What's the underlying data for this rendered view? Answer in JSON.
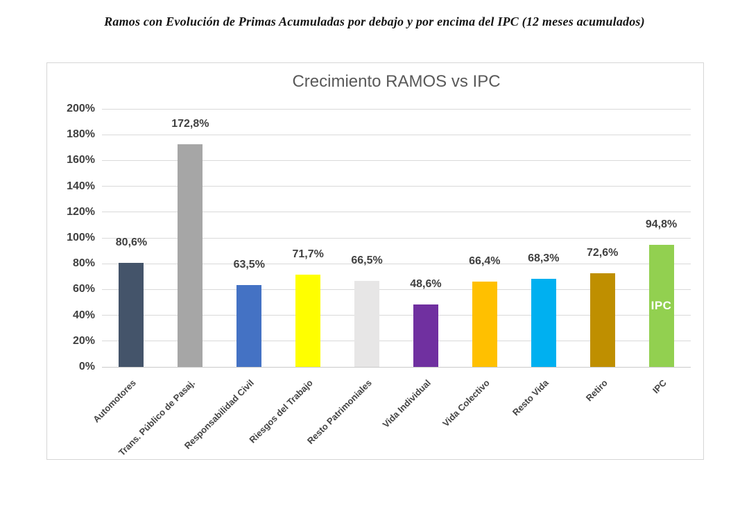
{
  "heading": "Ramos con Evolución de Primas Acumuladas por debajo y por encima del IPC (12 meses acumulados)",
  "chart_data": {
    "type": "bar",
    "title": "Crecimiento RAMOS vs IPC",
    "categories": [
      "Automotores",
      "Trans. Público de Pasaj.",
      "Responsabilidad Civil",
      "Riesgos del Trabajo",
      "Resto Patrimoniales",
      "Vida Individual",
      "Vida Colectivo",
      "Resto Vida",
      "Retiro",
      "IPC"
    ],
    "values": [
      80.6,
      172.8,
      63.5,
      71.7,
      66.5,
      48.6,
      66.4,
      68.3,
      72.6,
      94.8
    ],
    "labels": [
      "80,6%",
      "172,8%",
      "63,5%",
      "71,7%",
      "66,5%",
      "48,6%",
      "66,4%",
      "68,3%",
      "72,6%",
      "94,8%"
    ],
    "bar_colors": [
      "#44546A",
      "#A6A6A6",
      "#4472C4",
      "#FFFF00",
      "#E7E6E6",
      "#7030A0",
      "#FFC000",
      "#00B0F0",
      "#BF8F00",
      "#92D050"
    ],
    "bar_inner_label": {
      "index": 9,
      "text": "IPC",
      "color": "#FFFFFF"
    },
    "y_ticks": [
      "0%",
      "20%",
      "40%",
      "60%",
      "80%",
      "100%",
      "120%",
      "140%",
      "160%",
      "180%",
      "200%"
    ],
    "ylim": [
      0,
      200
    ],
    "grid": true,
    "legend": false,
    "xlabel": "",
    "ylabel": "",
    "colors": {
      "grid": "#D9D9D9",
      "axis": "#C9C9C9",
      "title_text": "#595959",
      "tick_text": "#404040",
      "value_text": "#404040",
      "chart_border": "#D6D6D6"
    }
  }
}
